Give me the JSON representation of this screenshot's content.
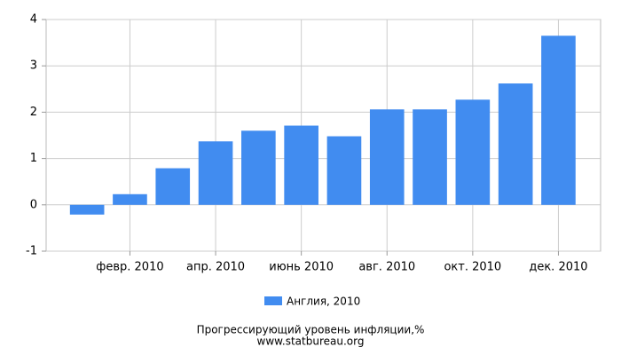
{
  "chart_data": {
    "type": "bar",
    "title": "Прогрессирующий уровень инфляции,%",
    "source": "www.statbureau.org",
    "categories": [
      null,
      "февр. 2010",
      null,
      "апр. 2010",
      null,
      "июнь 2010",
      null,
      "авг. 2010",
      null,
      "окт. 2010",
      null,
      "дек. 2010"
    ],
    "series": [
      {
        "name": "Англия, 2010",
        "color": "#418cf0",
        "values": [
          -0.21,
          0.23,
          0.79,
          1.37,
          1.6,
          1.71,
          1.48,
          2.06,
          2.06,
          2.27,
          2.62,
          3.65
        ]
      }
    ],
    "ylim": [
      -1,
      4
    ],
    "yticks": [
      -1,
      0,
      1,
      2,
      3,
      4
    ],
    "grid": true
  }
}
